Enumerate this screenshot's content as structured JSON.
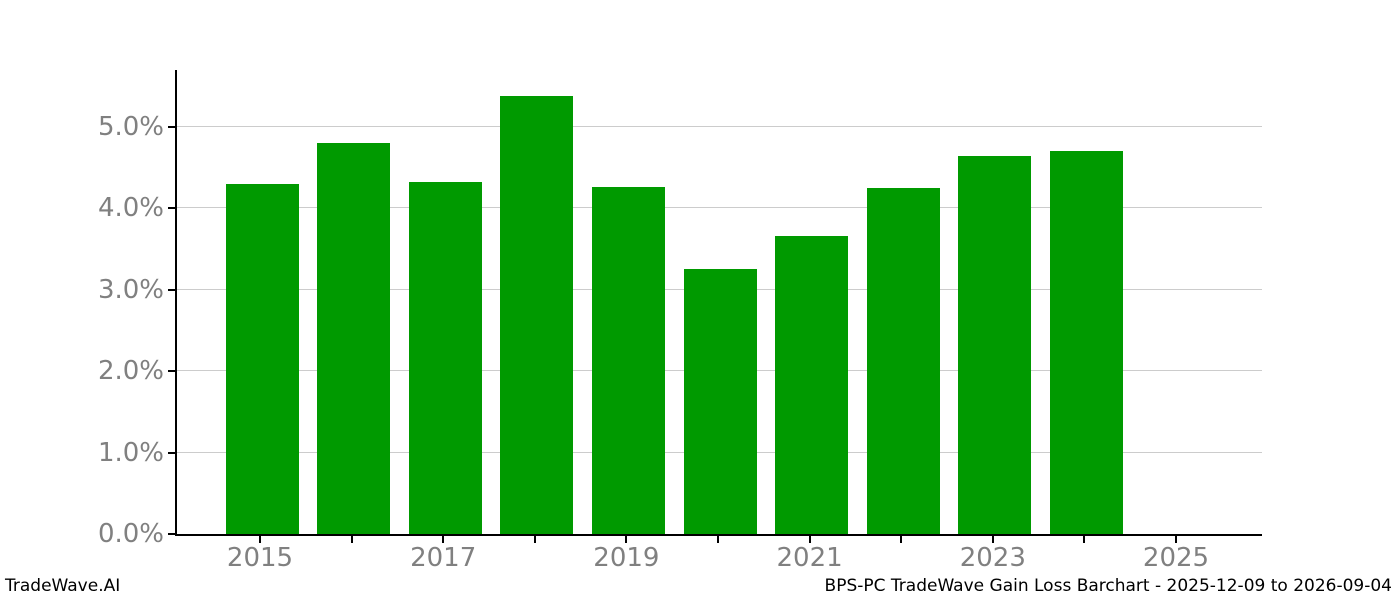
{
  "footer": {
    "brand": "TradeWave.AI",
    "title": "BPS-PC TradeWave Gain Loss Barchart - 2025-12-09 to 2026-09-04"
  },
  "chart_data": {
    "type": "bar",
    "title": "BPS-PC TradeWave Gain Loss Barchart - 2025-12-09 to 2026-09-04",
    "watermark": "TradeWave.AI",
    "categories": [
      "2015",
      "2016",
      "2017",
      "2018",
      "2019",
      "2020",
      "2021",
      "2022",
      "2023",
      "2024"
    ],
    "values": [
      4.3,
      4.8,
      4.32,
      5.38,
      4.26,
      3.25,
      3.66,
      4.25,
      4.64,
      4.7
    ],
    "unit": "%",
    "xlabel": "",
    "ylabel": "",
    "ylim": [
      0,
      5.7
    ],
    "y_tick_values": [
      0,
      1,
      2,
      3,
      4,
      5
    ],
    "y_tick_labels": [
      "0.0%",
      "1.0%",
      "2.0%",
      "3.0%",
      "4.0%",
      "5.0%"
    ],
    "x_tick_years": [
      2015,
      2016,
      2017,
      2018,
      2019,
      2020,
      2021,
      2022,
      2023,
      2024,
      2025
    ],
    "x_labeled_years": [
      2015,
      2017,
      2019,
      2021,
      2023,
      2025
    ],
    "grid": "horizontal",
    "legend": "none",
    "colors": {
      "bar": "#009a00",
      "grid": "#cccccc",
      "tick_label": "#808080",
      "axis": "#000000",
      "background": "#ffffff"
    }
  }
}
